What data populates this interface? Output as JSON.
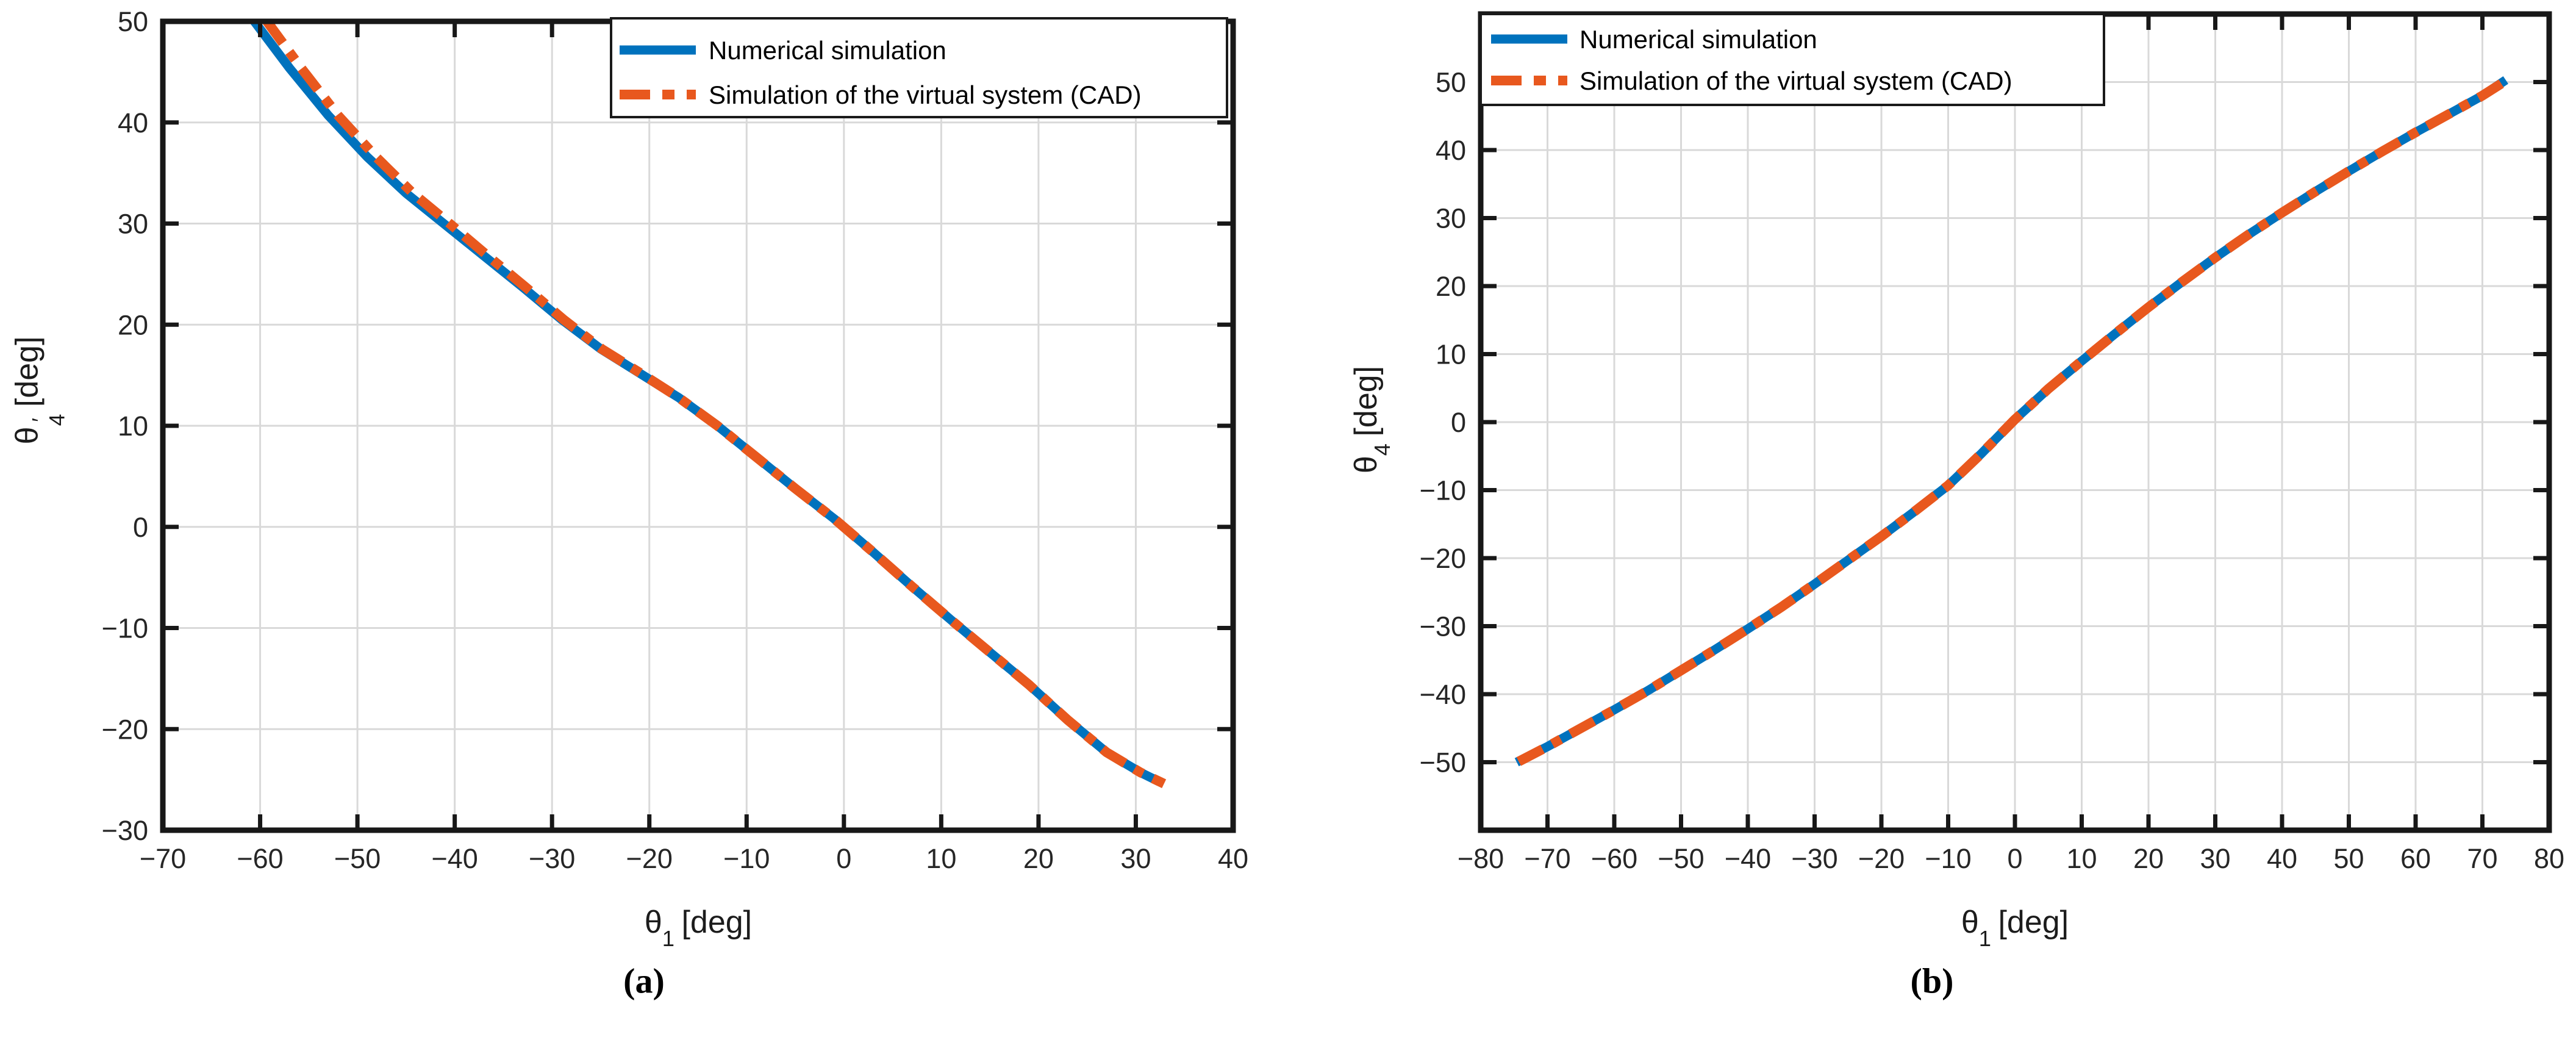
{
  "figure": {
    "captions": {
      "a": "(a)",
      "b": "(b)"
    },
    "colors": {
      "numerical_blue": "#0072BD",
      "cad_orange": "#E8581E",
      "grid": "#D9D9D9",
      "axis": "#181818",
      "tick_text": "#262626",
      "background": "#FFFFFF"
    }
  },
  "chart_data": [
    {
      "panel": "a",
      "type": "line",
      "title": "",
      "xlabel": "theta_1 [deg]",
      "ylabel": "theta_4' [deg]",
      "xlabel_parts": {
        "symbol": "θ",
        "sub": "1",
        "unit": "[deg]"
      },
      "ylabel_parts": {
        "symbol": "θ",
        "sub": "4",
        "prime": "′",
        "unit": "[deg]"
      },
      "xlim": [
        -70,
        40
      ],
      "ylim": [
        -30,
        50
      ],
      "xticks": [
        -70,
        -60,
        -50,
        -40,
        -30,
        -20,
        -10,
        0,
        10,
        20,
        30,
        40
      ],
      "yticks": [
        -30,
        -20,
        -10,
        0,
        10,
        20,
        30,
        40,
        50
      ],
      "grid": true,
      "legend_position": "top-right",
      "series": [
        {
          "name": "Numerical simulation",
          "style": "solid",
          "color_key": "numerical_blue",
          "x": [
            -60.6,
            -57,
            -53,
            -49,
            -45,
            -41,
            -37,
            -33,
            -29,
            -25,
            -21,
            -17,
            -13,
            -9,
            -5,
            -1,
            3,
            7,
            11,
            15,
            19,
            23,
            27,
            30.5,
            32.4
          ],
          "y": [
            50,
            45.4,
            40.7,
            36.6,
            33,
            29.9,
            26.8,
            23.7,
            20.5,
            17.6,
            15.2,
            12.8,
            10,
            6.9,
            3.8,
            0.8,
            -2.5,
            -5.9,
            -9.2,
            -12.4,
            -15.6,
            -19.1,
            -22.3,
            -24.3,
            -25.2
          ]
        },
        {
          "name": "Simulation of the virtual system (CAD)",
          "style": "dash-dot",
          "color_key": "cad_orange",
          "x": [
            -59.3,
            -55.8,
            -52,
            -48.1,
            -44.3,
            -40.4,
            -36.6,
            -32.7,
            -28.8,
            -24.9,
            -20.9,
            -17,
            -13,
            -9,
            -5,
            -1,
            3,
            7,
            11,
            15,
            19,
            23,
            27,
            30.5,
            32.9
          ],
          "y": [
            50,
            45.4,
            40.7,
            36.6,
            33,
            29.9,
            26.8,
            23.7,
            20.5,
            17.6,
            15.2,
            12.8,
            10,
            6.9,
            3.8,
            0.8,
            -2.5,
            -5.9,
            -9.2,
            -12.4,
            -15.6,
            -19.1,
            -22.3,
            -24.3,
            -25.4
          ]
        }
      ]
    },
    {
      "panel": "b",
      "type": "line",
      "title": "",
      "xlabel": "theta_1 [deg]",
      "ylabel": "theta_4 [deg]",
      "xlabel_parts": {
        "symbol": "θ",
        "sub": "1",
        "unit": "[deg]"
      },
      "ylabel_parts": {
        "symbol": "θ",
        "sub": "4",
        "prime": "",
        "unit": "[deg]"
      },
      "xlim": [
        -80,
        80
      ],
      "ylim": [
        -60,
        60
      ],
      "xticks": [
        -80,
        -70,
        -60,
        -50,
        -40,
        -30,
        -20,
        -10,
        0,
        10,
        20,
        30,
        40,
        50,
        60,
        70,
        80
      ],
      "yticks": [
        -50,
        -40,
        -30,
        -20,
        -10,
        0,
        10,
        20,
        30,
        40,
        50
      ],
      "grid": true,
      "legend_position": "top-left",
      "series": [
        {
          "name": "Numerical simulation",
          "style": "solid",
          "color_key": "numerical_blue",
          "x": [
            -74.6,
            -70,
            -65,
            -60,
            -55,
            -50,
            -45,
            -40,
            -35,
            -30,
            -25,
            -20,
            -15,
            -10,
            -5,
            0,
            5,
            10,
            15,
            20,
            25,
            30,
            35,
            40,
            45,
            50,
            55,
            60,
            65,
            70,
            73.5
          ],
          "y": [
            -50,
            -47.7,
            -45,
            -42.3,
            -39.5,
            -36.5,
            -33.5,
            -30.4,
            -27.2,
            -23.8,
            -20.3,
            -16.8,
            -13.1,
            -9.3,
            -4.6,
            0.4,
            4.9,
            9,
            13,
            16.9,
            20.6,
            24.2,
            27.6,
            30.8,
            33.9,
            36.9,
            39.8,
            42.6,
            45.3,
            48,
            50.3
          ]
        },
        {
          "name": "Simulation of the virtual system (CAD)",
          "style": "dash-dot",
          "color_key": "cad_orange",
          "x": [
            -74.3,
            -70,
            -65,
            -60,
            -55,
            -50,
            -45,
            -40,
            -35,
            -30,
            -25,
            -20,
            -15,
            -10,
            -5,
            0,
            5,
            10,
            15,
            20,
            25,
            30,
            35,
            40,
            45,
            50,
            55,
            60,
            65,
            70,
            74
          ],
          "y": [
            -49.9,
            -47.7,
            -45,
            -42.3,
            -39.5,
            -36.5,
            -33.5,
            -30.4,
            -27.2,
            -23.8,
            -20.3,
            -16.8,
            -13.1,
            -9.3,
            -4.6,
            0.4,
            4.9,
            9,
            13,
            16.9,
            20.6,
            24.2,
            27.6,
            30.8,
            33.9,
            36.9,
            39.8,
            42.6,
            45.3,
            48,
            50.5
          ]
        }
      ]
    }
  ]
}
